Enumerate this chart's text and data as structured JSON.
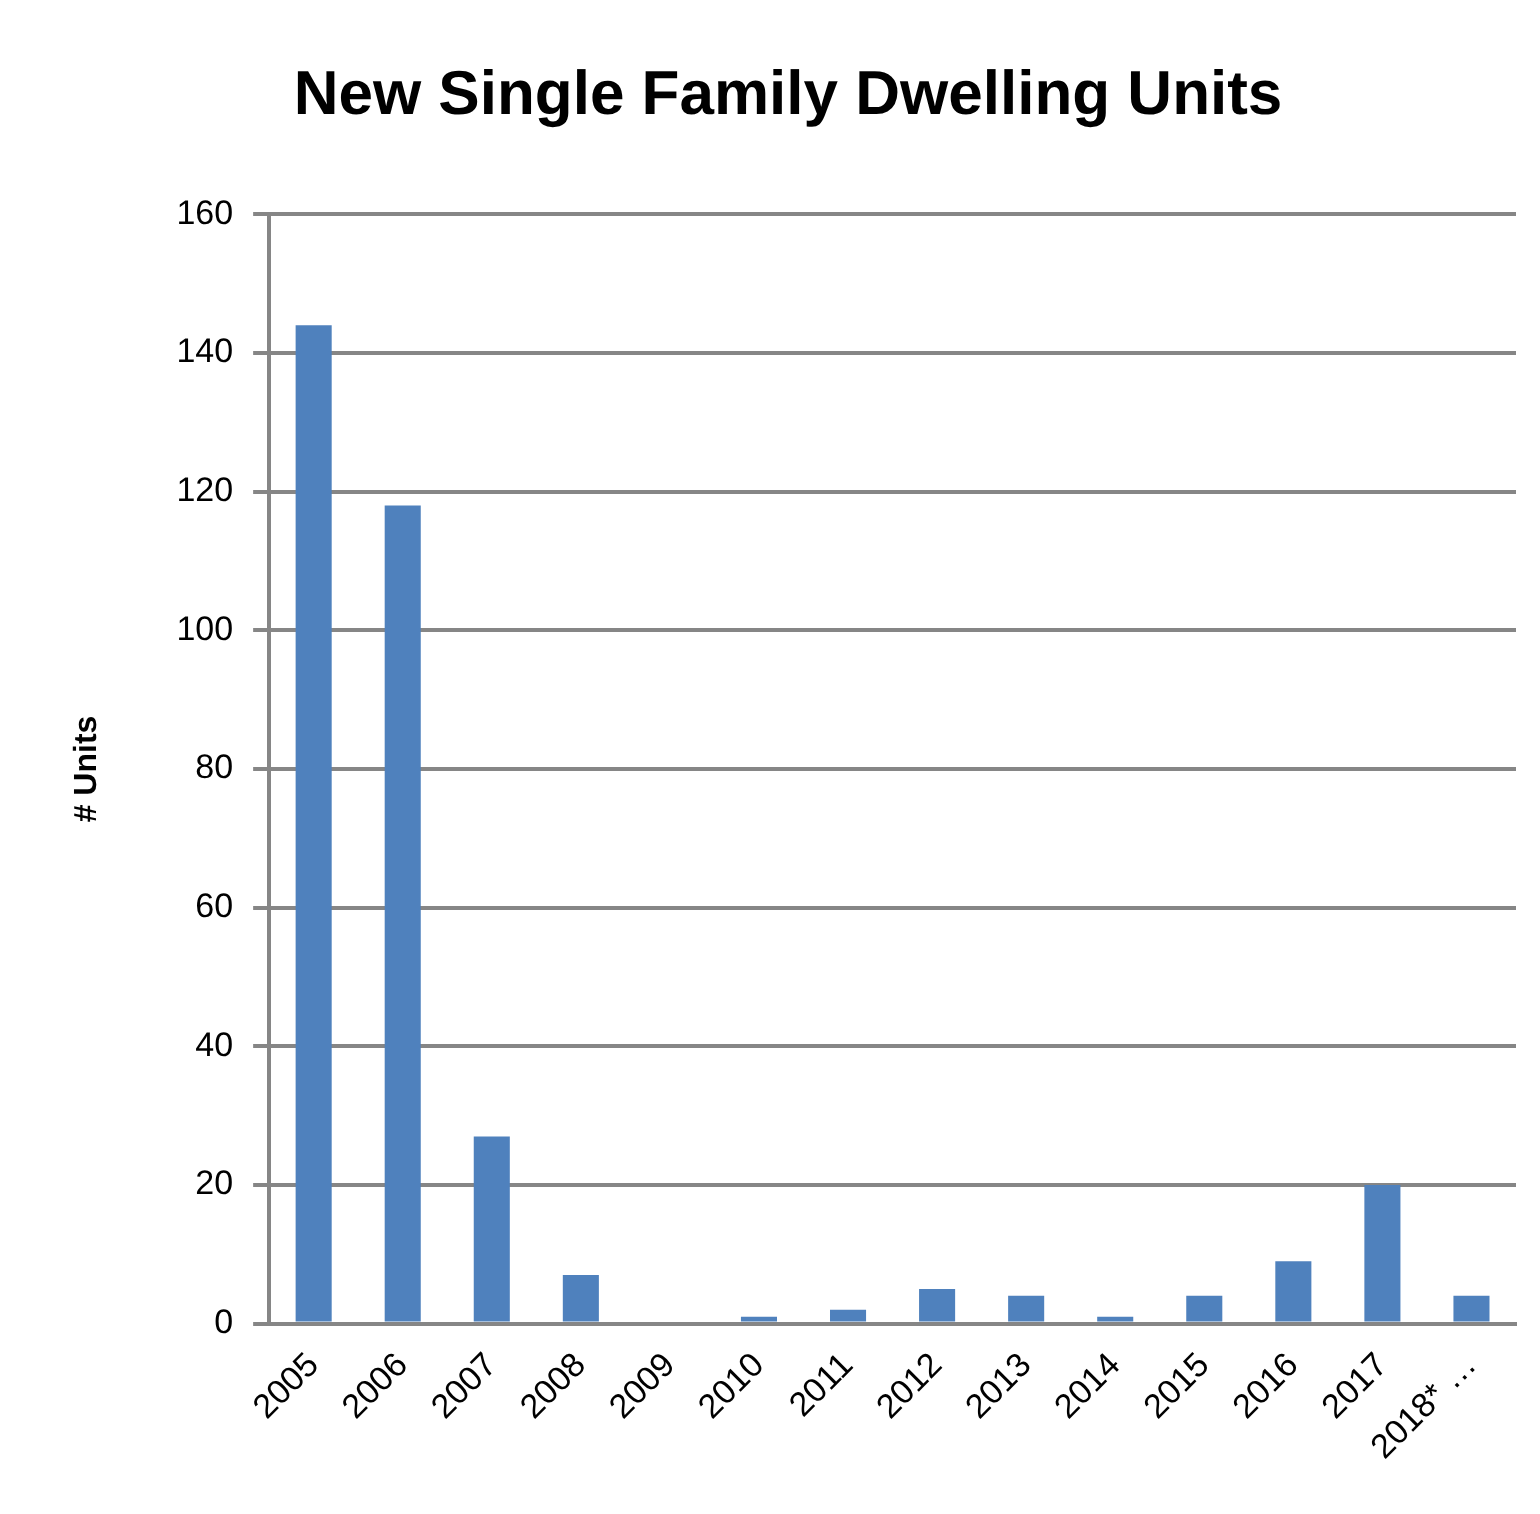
{
  "chart_data": {
    "type": "bar",
    "title": "New Single Family Dwelling Units",
    "ylabel": "# Units",
    "categories": [
      "2005",
      "2006",
      "2007",
      "2008",
      "2009",
      "2010",
      "2011",
      "2012",
      "2013",
      "2014",
      "2015",
      "2016",
      "2017",
      "2018* …"
    ],
    "values": [
      144,
      118,
      27,
      7,
      0,
      1,
      2,
      5,
      4,
      1,
      4,
      9,
      20,
      4
    ],
    "color": "#4f81bd",
    "ylim": [
      0,
      160
    ],
    "yticks": [
      0,
      20,
      40,
      60,
      80,
      100,
      120,
      140,
      160
    ],
    "grid": "y",
    "legend": false
  }
}
